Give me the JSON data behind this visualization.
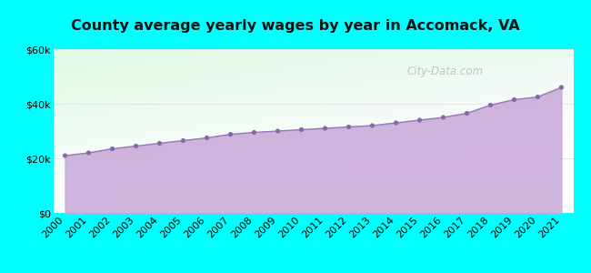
{
  "title": "County average yearly wages by year in Accomack, VA",
  "years": [
    2000,
    2001,
    2002,
    2003,
    2004,
    2005,
    2006,
    2007,
    2008,
    2009,
    2010,
    2011,
    2012,
    2013,
    2014,
    2015,
    2016,
    2017,
    2018,
    2019,
    2020,
    2021
  ],
  "wages": [
    21000,
    22000,
    23500,
    24500,
    25500,
    26500,
    27500,
    28800,
    29500,
    30000,
    30500,
    31000,
    31500,
    32000,
    33000,
    34000,
    35000,
    36500,
    39500,
    41500,
    42500,
    46000
  ],
  "fill_color": "#c8a8d8",
  "fill_alpha": 0.85,
  "line_color": "#9977bb",
  "marker_color": "#8866aa",
  "outer_bg": "#00ffff",
  "ylim": [
    0,
    60000
  ],
  "yticks": [
    0,
    20000,
    40000,
    60000
  ],
  "ytick_labels": [
    "$0",
    "$20k",
    "$40k",
    "$60k"
  ],
  "watermark": "City-Data.com",
  "title_fontsize": 11.5,
  "tick_fontsize": 8.0,
  "grid_color": "#dddddd"
}
